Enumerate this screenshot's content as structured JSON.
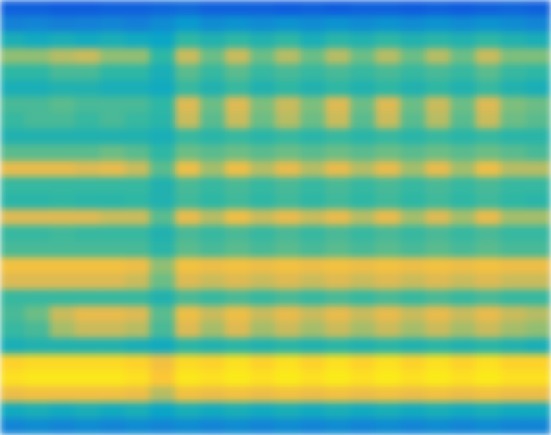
{
  "chart_data": {
    "type": "heatmap",
    "xlim": [
      0,
      22
    ],
    "ylim": [
      0,
      27
    ],
    "zlim": [
      0,
      100
    ],
    "tick_labels": false,
    "cells": [
      [
        22,
        22,
        20,
        20,
        22,
        22,
        24,
        26,
        22,
        22,
        22,
        20,
        22,
        20,
        22,
        22,
        20,
        22,
        20,
        22,
        24,
        22
      ],
      [
        35,
        36,
        34,
        35,
        36,
        34,
        38,
        42,
        38,
        40,
        38,
        40,
        38,
        40,
        38,
        40,
        38,
        40,
        38,
        40,
        38,
        36
      ],
      [
        50,
        48,
        50,
        48,
        50,
        48,
        46,
        55,
        52,
        55,
        52,
        55,
        50,
        54,
        52,
        55,
        52,
        54,
        52,
        55,
        52,
        50
      ],
      [
        66,
        66,
        70,
        72,
        66,
        66,
        55,
        72,
        62,
        72,
        62,
        70,
        62,
        70,
        62,
        70,
        62,
        70,
        62,
        72,
        64,
        64
      ],
      [
        55,
        55,
        58,
        58,
        55,
        55,
        50,
        60,
        56,
        60,
        56,
        58,
        56,
        58,
        56,
        58,
        56,
        58,
        56,
        60,
        56,
        55
      ],
      [
        50,
        50,
        52,
        52,
        50,
        50,
        48,
        56,
        52,
        56,
        52,
        55,
        52,
        55,
        52,
        55,
        52,
        55,
        52,
        56,
        52,
        50
      ],
      [
        58,
        58,
        60,
        58,
        58,
        58,
        55,
        74,
        62,
        74,
        64,
        72,
        64,
        74,
        62,
        74,
        62,
        72,
        62,
        74,
        64,
        62
      ],
      [
        56,
        58,
        58,
        56,
        58,
        56,
        54,
        72,
        60,
        72,
        62,
        70,
        62,
        72,
        60,
        72,
        60,
        70,
        60,
        72,
        62,
        60
      ],
      [
        52,
        52,
        52,
        52,
        52,
        52,
        50,
        56,
        54,
        56,
        54,
        56,
        54,
        56,
        54,
        56,
        54,
        56,
        54,
        56,
        54,
        54
      ],
      [
        60,
        60,
        60,
        60,
        62,
        60,
        55,
        62,
        60,
        62,
        60,
        62,
        60,
        62,
        60,
        62,
        60,
        62,
        60,
        62,
        60,
        58
      ],
      [
        76,
        76,
        76,
        74,
        76,
        72,
        60,
        78,
        68,
        78,
        70,
        76,
        70,
        76,
        70,
        76,
        68,
        76,
        68,
        78,
        70,
        70
      ],
      [
        56,
        56,
        56,
        56,
        56,
        56,
        52,
        58,
        56,
        58,
        56,
        58,
        56,
        58,
        56,
        58,
        56,
        58,
        56,
        58,
        56,
        56
      ],
      [
        54,
        54,
        55,
        54,
        54,
        55,
        52,
        57,
        55,
        57,
        55,
        57,
        55,
        57,
        55,
        57,
        55,
        57,
        55,
        57,
        55,
        54
      ],
      [
        74,
        74,
        74,
        74,
        72,
        72,
        60,
        76,
        70,
        78,
        72,
        76,
        72,
        76,
        70,
        76,
        68,
        74,
        68,
        76,
        68,
        68
      ],
      [
        56,
        56,
        57,
        56,
        56,
        56,
        52,
        58,
        56,
        58,
        56,
        58,
        56,
        58,
        56,
        58,
        56,
        58,
        56,
        58,
        56,
        56
      ],
      [
        58,
        58,
        58,
        58,
        58,
        58,
        54,
        60,
        58,
        60,
        58,
        60,
        58,
        60,
        58,
        60,
        58,
        60,
        58,
        60,
        58,
        58
      ],
      [
        80,
        80,
        80,
        80,
        80,
        78,
        66,
        80,
        78,
        80,
        78,
        80,
        78,
        80,
        78,
        80,
        78,
        80,
        78,
        80,
        78,
        78
      ],
      [
        74,
        74,
        74,
        74,
        74,
        72,
        62,
        74,
        72,
        74,
        72,
        74,
        72,
        74,
        72,
        74,
        72,
        74,
        72,
        74,
        72,
        72
      ],
      [
        56,
        56,
        56,
        56,
        56,
        56,
        52,
        58,
        56,
        58,
        56,
        58,
        56,
        58,
        56,
        58,
        56,
        58,
        56,
        58,
        56,
        56
      ],
      [
        58,
        62,
        72,
        76,
        76,
        74,
        60,
        78,
        72,
        78,
        72,
        76,
        72,
        76,
        72,
        76,
        72,
        76,
        72,
        76,
        72,
        70
      ],
      [
        56,
        58,
        68,
        72,
        72,
        70,
        58,
        74,
        68,
        74,
        68,
        72,
        68,
        72,
        68,
        72,
        68,
        72,
        68,
        72,
        68,
        66
      ],
      [
        50,
        52,
        52,
        52,
        52,
        50,
        48,
        54,
        52,
        54,
        52,
        54,
        52,
        54,
        52,
        54,
        52,
        54,
        52,
        54,
        52,
        50
      ],
      [
        88,
        90,
        90,
        90,
        90,
        88,
        80,
        90,
        88,
        92,
        88,
        92,
        88,
        92,
        88,
        92,
        88,
        92,
        88,
        92,
        88,
        88
      ],
      [
        92,
        94,
        94,
        94,
        94,
        92,
        84,
        94,
        92,
        95,
        92,
        95,
        92,
        95,
        92,
        95,
        92,
        95,
        92,
        95,
        92,
        92
      ],
      [
        78,
        80,
        80,
        80,
        80,
        78,
        70,
        80,
        78,
        80,
        78,
        80,
        78,
        80,
        78,
        80,
        78,
        80,
        78,
        80,
        78,
        78
      ],
      [
        48,
        50,
        48,
        50,
        48,
        50,
        46,
        50,
        48,
        50,
        48,
        50,
        48,
        50,
        48,
        50,
        48,
        50,
        48,
        50,
        48,
        48
      ],
      [
        36,
        38,
        36,
        38,
        36,
        38,
        36,
        38,
        36,
        38,
        36,
        38,
        36,
        38,
        36,
        38,
        36,
        38,
        36,
        38,
        36,
        36
      ]
    ]
  }
}
